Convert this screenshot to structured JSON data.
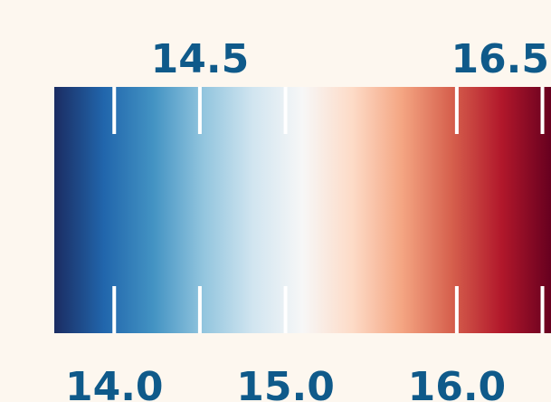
{
  "chart_data": {
    "type": "colorbar",
    "colormap": "RdBu_r",
    "vmin": 13.65,
    "vmax": 16.55,
    "colors": [
      "#1b2c62",
      "#2166ac",
      "#4393c3",
      "#92c5de",
      "#d1e5f0",
      "#f7f7f7",
      "#fddbc7",
      "#f4a582",
      "#d6604d",
      "#b2182b",
      "#67001f"
    ],
    "ticks_top": [
      {
        "value": 14.5,
        "label": "14.5"
      },
      {
        "value": 16.5,
        "label": "16.5"
      }
    ],
    "ticks_bottom": [
      {
        "value": 14.0,
        "label": "14.0"
      },
      {
        "value": 15.0,
        "label": "15.0"
      },
      {
        "value": 16.0,
        "label": "16.0"
      }
    ],
    "tick_color": "#ffffff",
    "label_color": "#0f5a8a",
    "background": "#fdf7ef"
  }
}
